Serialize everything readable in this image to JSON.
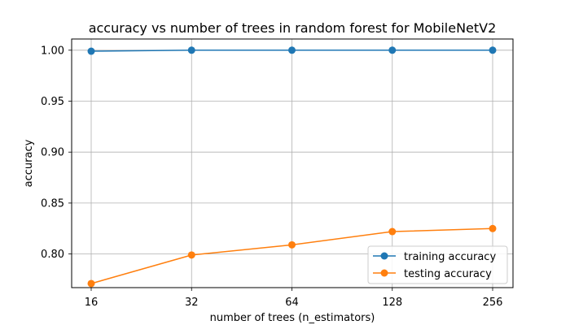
{
  "chart_data": {
    "type": "line",
    "title": "accuracy vs number of trees in random forest for MobileNetV2",
    "xlabel": "number of trees (n_estimators)",
    "ylabel": "accuracy",
    "categories": [
      "16",
      "32",
      "64",
      "128",
      "256"
    ],
    "x_scale": "log2",
    "ylim": [
      0.767,
      1.011
    ],
    "yticks": [
      "0.80",
      "0.85",
      "0.90",
      "0.95",
      "1.00"
    ],
    "ytick_values": [
      0.8,
      0.85,
      0.9,
      0.95,
      1.0
    ],
    "grid": true,
    "legend_position": "lower-right",
    "series": [
      {
        "name": "training accuracy",
        "color": "#1f77b4",
        "values": [
          0.999,
          1.0,
          1.0,
          1.0,
          1.0
        ]
      },
      {
        "name": "testing accuracy",
        "color": "#ff7f0e",
        "values": [
          0.771,
          0.799,
          0.809,
          0.822,
          0.825
        ]
      }
    ]
  }
}
